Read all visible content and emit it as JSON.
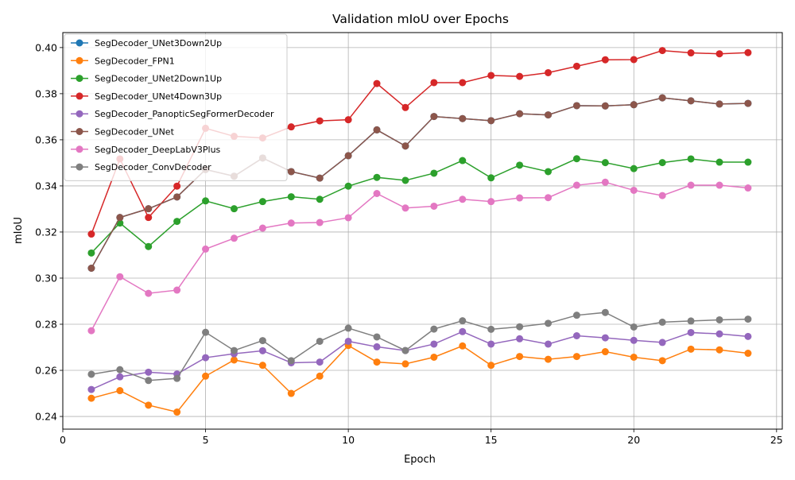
{
  "chart_data": {
    "type": "line",
    "title": "Validation mIoU over Epochs",
    "xlabel": "Epoch",
    "ylabel": "mIoU",
    "xlim": [
      0,
      25.2
    ],
    "ylim": [
      0.2345,
      0.4065
    ],
    "xticks": [
      0,
      5,
      10,
      15,
      20,
      25
    ],
    "yticks": [
      0.24,
      0.26,
      0.28,
      0.3,
      0.32,
      0.34,
      0.36,
      0.38,
      0.4
    ],
    "xtick_labels": [
      "0",
      "5",
      "10",
      "15",
      "20",
      "25"
    ],
    "ytick_labels": [
      "0.24",
      "0.26",
      "0.28",
      "0.30",
      "0.32",
      "0.34",
      "0.36",
      "0.38",
      "0.40"
    ],
    "grid": true,
    "legend_position": "top-left",
    "x": [
      1,
      2,
      3,
      4,
      5,
      6,
      7,
      8,
      9,
      10,
      11,
      12,
      13,
      14,
      15,
      16,
      17,
      18,
      19,
      20,
      21,
      22,
      23,
      24
    ],
    "series": [
      {
        "name": "SegDecoder_UNet3Down2Up",
        "color": "#1f77b4",
        "values": [
          0.3043,
          0.3263,
          0.3301,
          0.3352,
          0.3471,
          0.3442,
          0.3521,
          0.3462,
          0.3434,
          0.3531,
          0.3643,
          0.3573,
          0.3701,
          0.3692,
          0.3683,
          0.3713,
          0.3708,
          0.3748,
          0.3747,
          0.3752,
          0.3782,
          0.3769,
          0.3755,
          0.3758
        ]
      },
      {
        "name": "SegDecoder_FPN1",
        "color": "#ff7f0e",
        "values": [
          0.2479,
          0.2512,
          0.2449,
          0.2419,
          0.2575,
          0.2645,
          0.2622,
          0.25,
          0.2575,
          0.2708,
          0.2636,
          0.2628,
          0.2657,
          0.2706,
          0.2622,
          0.266,
          0.2648,
          0.266,
          0.2681,
          0.2657,
          0.2642,
          0.2692,
          0.2689,
          0.2674
        ]
      },
      {
        "name": "SegDecoder_UNet2Down1Up",
        "color": "#2ca02c",
        "values": [
          0.3109,
          0.3239,
          0.3137,
          0.3246,
          0.3335,
          0.3301,
          0.3332,
          0.3353,
          0.3342,
          0.3399,
          0.3437,
          0.3424,
          0.3455,
          0.351,
          0.3435,
          0.349,
          0.3462,
          0.3518,
          0.3501,
          0.3475,
          0.3501,
          0.3517,
          0.3503,
          0.3503
        ]
      },
      {
        "name": "SegDecoder_UNet4Down3Up",
        "color": "#d62728",
        "values": [
          0.3191,
          0.3517,
          0.3263,
          0.3399,
          0.365,
          0.3615,
          0.3608,
          0.3656,
          0.3682,
          0.3687,
          0.3844,
          0.374,
          0.3848,
          0.3848,
          0.3879,
          0.3875,
          0.3891,
          0.3919,
          0.3947,
          0.3948,
          0.3987,
          0.3977,
          0.3973,
          0.3978
        ]
      },
      {
        "name": "SegDecoder_PanopticSegFormerDecoder",
        "color": "#9467bd",
        "values": [
          0.2517,
          0.2572,
          0.2592,
          0.2584,
          0.2655,
          0.2672,
          0.2685,
          0.2633,
          0.2636,
          0.2726,
          0.2702,
          0.2686,
          0.2714,
          0.2768,
          0.2714,
          0.2737,
          0.2714,
          0.275,
          0.2741,
          0.273,
          0.2721,
          0.2764,
          0.2758,
          0.2747
        ]
      },
      {
        "name": "SegDecoder_UNet",
        "color": "#8c564b",
        "values": [
          0.3043,
          0.3263,
          0.3301,
          0.3352,
          0.3471,
          0.3442,
          0.3521,
          0.3462,
          0.3434,
          0.3531,
          0.3643,
          0.3573,
          0.3701,
          0.3692,
          0.3683,
          0.3713,
          0.3708,
          0.3748,
          0.3747,
          0.3752,
          0.3782,
          0.3769,
          0.3755,
          0.3758
        ]
      },
      {
        "name": "SegDecoder_DeepLabV3Plus",
        "color": "#e377c2",
        "values": [
          0.2772,
          0.3006,
          0.2934,
          0.2948,
          0.3126,
          0.3173,
          0.3217,
          0.3239,
          0.3241,
          0.3262,
          0.3367,
          0.3304,
          0.3312,
          0.3342,
          0.3332,
          0.3348,
          0.3349,
          0.3403,
          0.3416,
          0.3381,
          0.3358,
          0.3403,
          0.3403,
          0.3391
        ]
      },
      {
        "name": "SegDecoder_ConvDecoder",
        "color": "#7f7f7f",
        "values": [
          0.2583,
          0.2603,
          0.2556,
          0.2565,
          0.2765,
          0.2686,
          0.2729,
          0.2642,
          0.2726,
          0.2783,
          0.2745,
          0.2686,
          0.2779,
          0.2815,
          0.2778,
          0.2789,
          0.2804,
          0.2839,
          0.2851,
          0.2788,
          0.2809,
          0.2814,
          0.2819,
          0.2822
        ]
      }
    ]
  }
}
